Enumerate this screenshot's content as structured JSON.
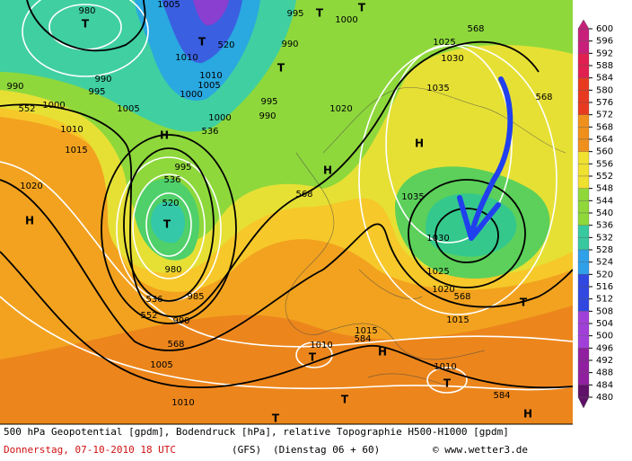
{
  "map": {
    "labels": [
      "990",
      "552",
      "995",
      "1000",
      "1005",
      "990",
      "1010",
      "1015",
      "1020",
      "H",
      "H",
      "T",
      "980",
      "1005",
      "T",
      "520",
      "1010",
      "1010",
      "1005",
      "1000",
      "1000",
      "536",
      "995",
      "T",
      "1000",
      "T",
      "990",
      "T",
      "995",
      "990",
      "1020",
      "1025",
      "568",
      "1030",
      "1035",
      "568",
      "H",
      "995",
      "536",
      "520",
      "T",
      "568",
      "1035",
      "1030",
      "1025",
      "1020",
      "568",
      "1015",
      "T",
      "980",
      "985",
      "536",
      "552",
      "990",
      "568",
      "1005",
      "1010",
      "1010",
      "T",
      "1015",
      "584",
      "H",
      "1010",
      "T",
      "584",
      "T",
      "H",
      "T",
      "H"
    ],
    "legend": {
      "ticks": [
        600,
        596,
        592,
        588,
        584,
        580,
        576,
        572,
        568,
        564,
        560,
        556,
        552,
        548,
        544,
        540,
        536,
        532,
        528,
        524,
        520,
        516,
        512,
        508,
        504,
        500,
        496,
        492,
        488,
        484,
        480
      ]
    }
  },
  "footer": {
    "description": "500 hPa Geopotential [gpdm], Bodendruck [hPa], relative Topographie H500-H1000 [gpdm]",
    "date": "Donnerstag, 07-10-2010  18 UTC",
    "model": "(GFS)",
    "run": "(Dienstag 06 + 60)",
    "credit": "© www.wetter3.de"
  }
}
